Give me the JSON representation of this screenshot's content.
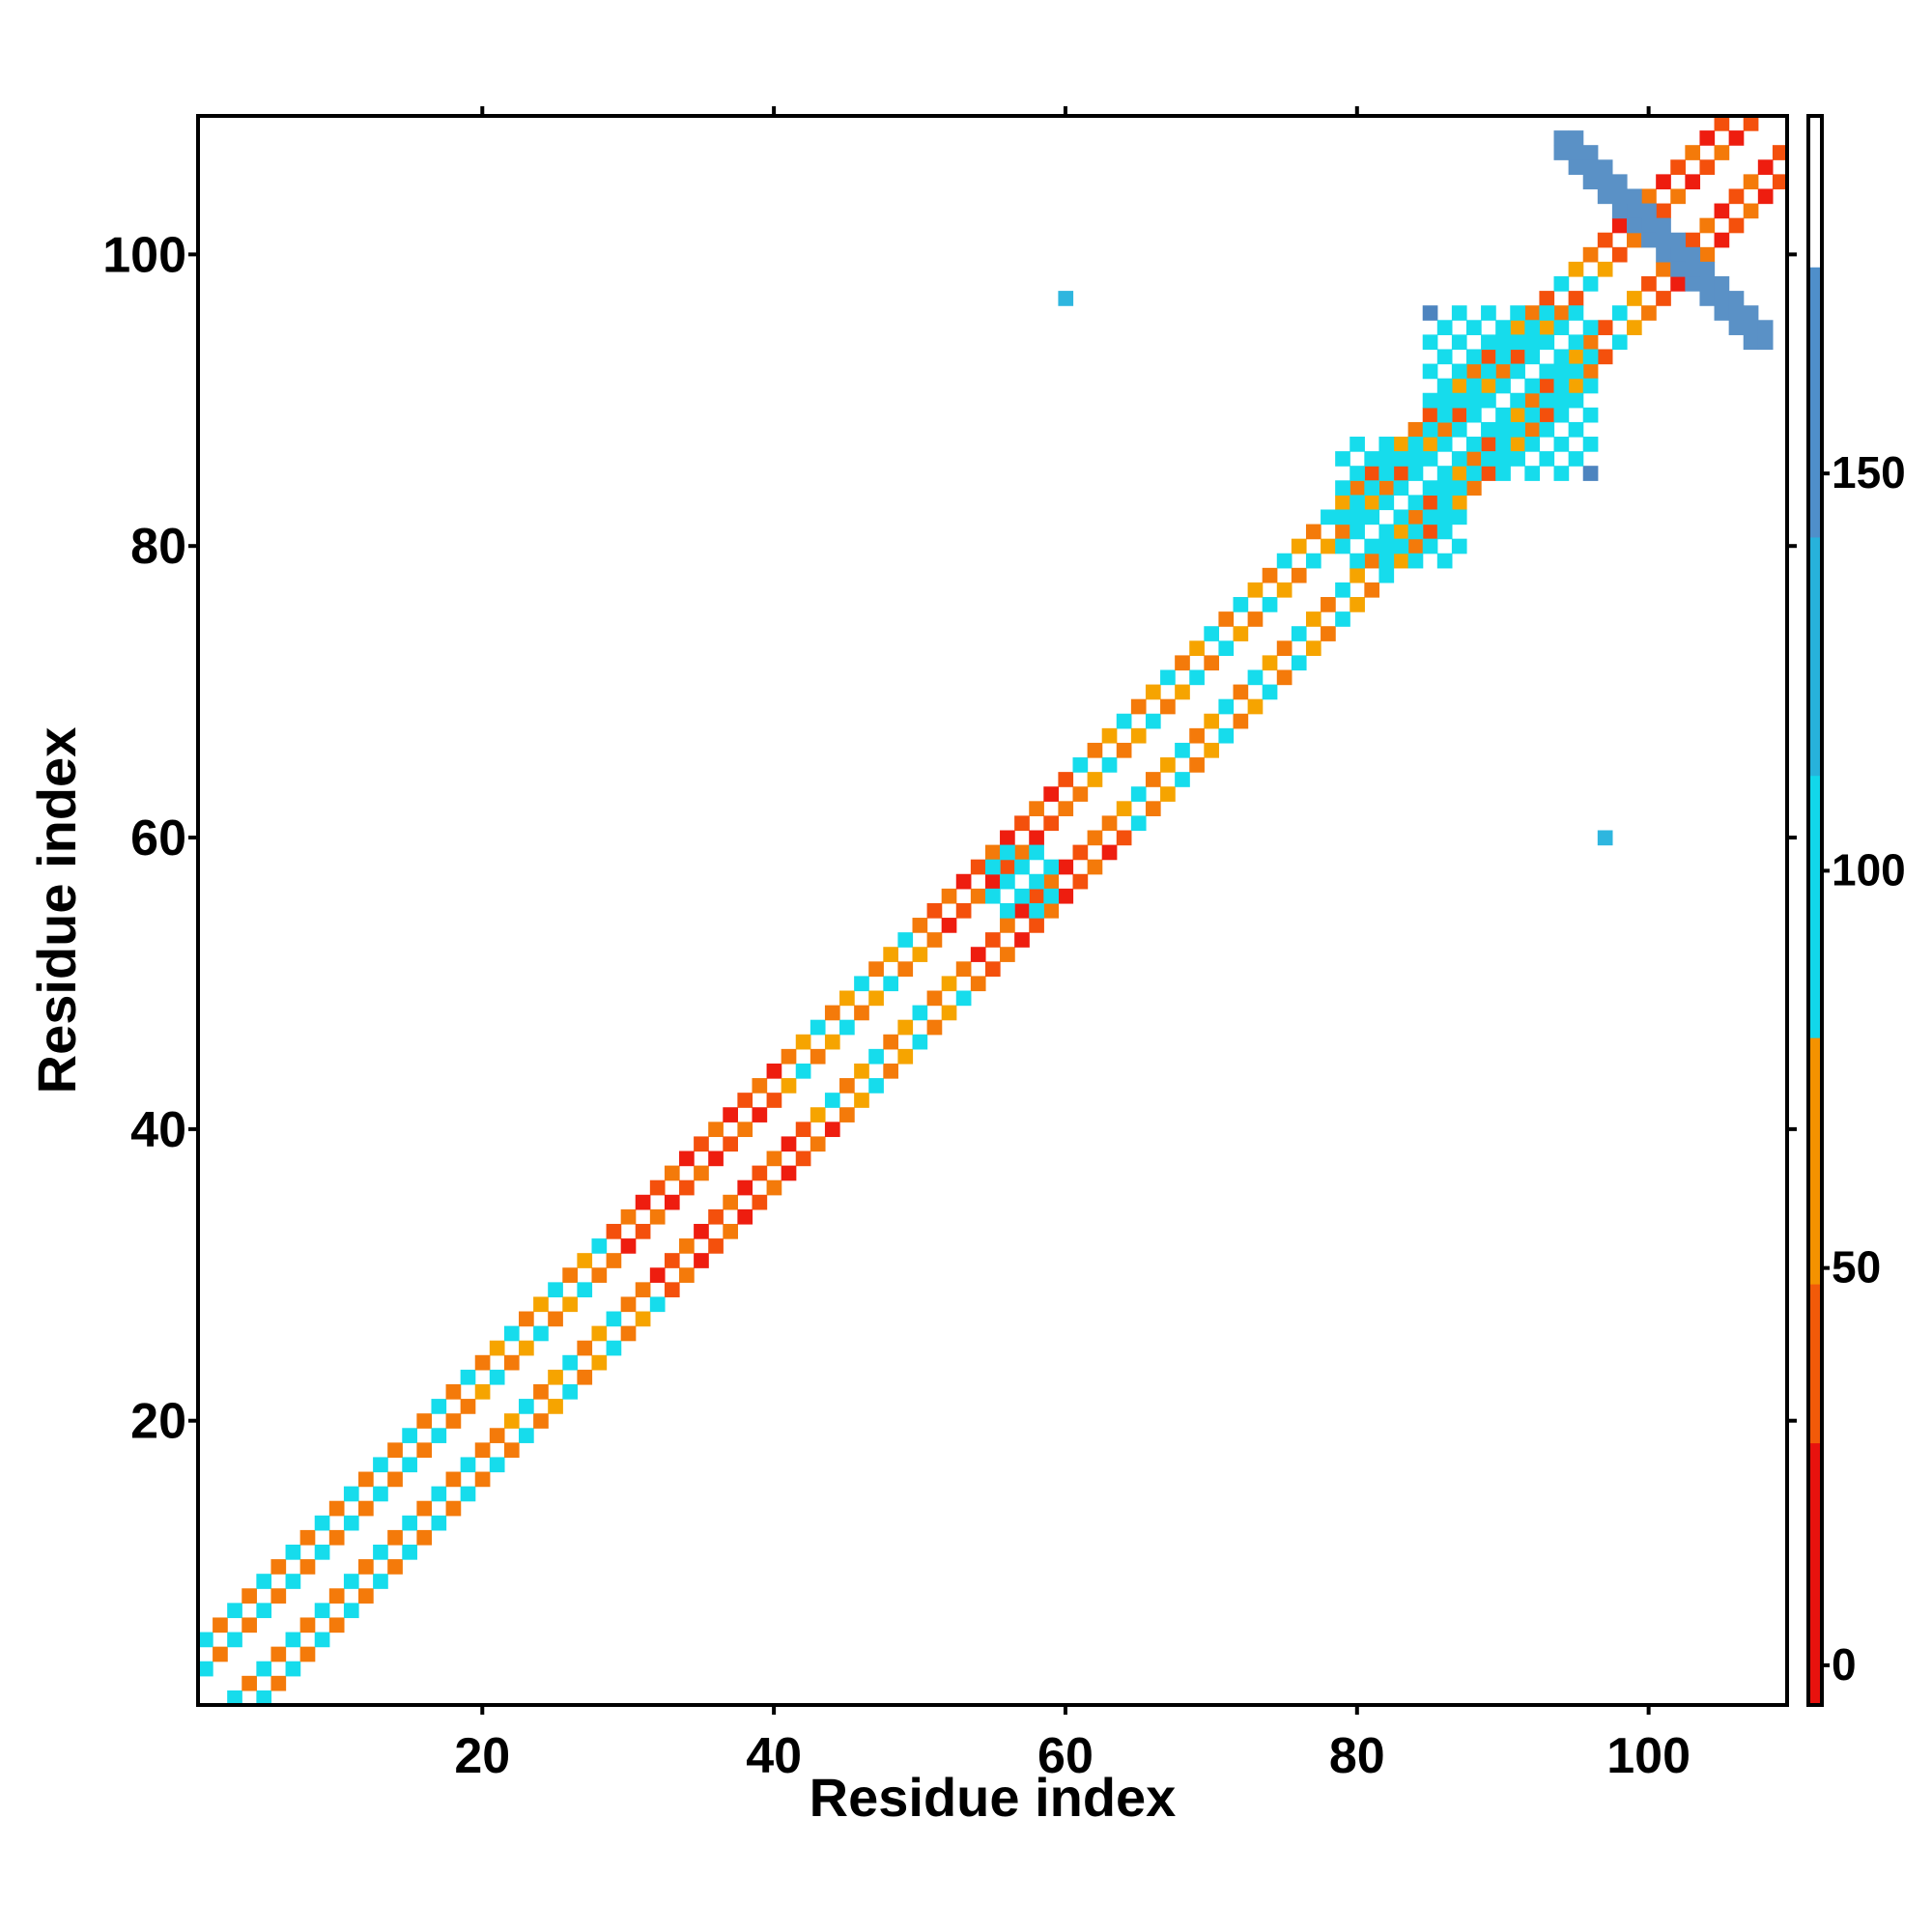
{
  "chart_data": {
    "type": "heatmap",
    "xlabel": "Residue index",
    "ylabel": "Residue index",
    "xlim": [
      1,
      109
    ],
    "ylim": [
      1,
      109
    ],
    "x_ticks": [
      20,
      40,
      60,
      80,
      100
    ],
    "y_ticks": [
      20,
      40,
      60,
      80,
      100
    ],
    "colorbar": {
      "range": [
        -5,
        195
      ],
      "ticks": [
        0,
        50,
        100,
        150
      ],
      "bands": [
        {
          "from": -5,
          "to": 28,
          "color": "#e8120e"
        },
        {
          "from": 28,
          "to": 48,
          "color": "#f25a09"
        },
        {
          "from": 48,
          "to": 79,
          "color": "#f49200"
        },
        {
          "from": 79,
          "to": 112,
          "color": "#12d7ea"
        },
        {
          "from": 112,
          "to": 142,
          "color": "#27b2db"
        },
        {
          "from": 142,
          "to": 176,
          "color": "#4f8fca"
        },
        {
          "from": 176,
          "to": 195,
          "color": "#ffffff"
        }
      ]
    },
    "palette": {
      "red": "#ee1d0f",
      "red_orange": "#f4500c",
      "orange": "#f47a0a",
      "amber": "#f6a400",
      "cyan": "#16dcec",
      "sky": "#2eb6df",
      "steel": "#5a91c6",
      "steel_dark": "#4d84bf"
    },
    "diagonal_bands": [
      {
        "from": 1,
        "to": 18,
        "pattern": [
          "orange",
          "cyan"
        ]
      },
      {
        "from": 18,
        "to": 28,
        "pattern": [
          "orange",
          "amber",
          "cyan"
        ]
      },
      {
        "from": 28,
        "to": 40,
        "pattern": [
          "red_orange",
          "orange",
          "red"
        ]
      },
      {
        "from": 40,
        "to": 50,
        "pattern": [
          "orange",
          "amber",
          "cyan"
        ]
      },
      {
        "from": 50,
        "to": 60,
        "pattern": [
          "red",
          "red_orange",
          "orange"
        ]
      },
      {
        "from": 60,
        "to": 70,
        "pattern": [
          "orange",
          "amber",
          "cyan"
        ]
      },
      {
        "from": 70,
        "to": 80,
        "pattern": [
          "orange",
          "cyan",
          "amber"
        ]
      },
      {
        "from": 80,
        "to": 97,
        "pattern": [
          "orange",
          "red_orange",
          "cyan",
          "amber"
        ]
      },
      {
        "from": 97,
        "to": 109,
        "pattern": [
          "red",
          "red_orange",
          "orange"
        ]
      }
    ],
    "blocks": [
      {
        "x": [
          56,
          59
        ],
        "y": [
          55,
          59
        ],
        "color": "cyan"
      },
      {
        "x": [
          79,
          86
        ],
        "y": [
          79,
          87
        ],
        "color": "cyan"
      },
      {
        "x": [
          85,
          96
        ],
        "y": [
          85,
          96
        ],
        "color": "cyan"
      },
      {
        "x": [
          94,
          106
        ],
        "y": [
          96,
          108
        ],
        "color": "steel",
        "anti_diagonal": true
      }
    ],
    "isolated_points": [
      {
        "x": 60,
        "y": 97,
        "color": "sky"
      },
      {
        "x": 97,
        "y": 60,
        "color": "sky"
      },
      {
        "x": 85,
        "y": 96,
        "color": "steel_dark"
      },
      {
        "x": 96,
        "y": 85,
        "color": "steel_dark"
      }
    ]
  }
}
